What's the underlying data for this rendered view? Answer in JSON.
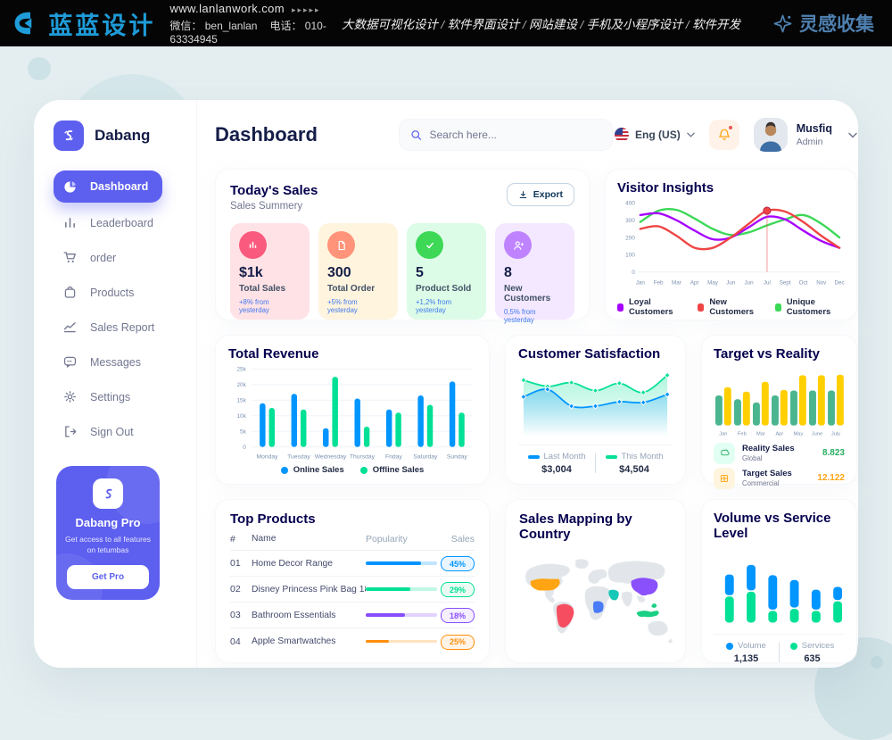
{
  "top_bar": {
    "brand": "蓝蓝设计",
    "website": "www.lanlanwork.com",
    "arrows": "▸▸▸▸▸",
    "wechat": "微信： ben_lanlan",
    "phone": "电话： 010-63334945",
    "services": "大数据可视化设计 / 软件界面设计 / 网站建设 / 手机及小程序设计 / 软件开发",
    "collection": "灵感收集"
  },
  "sidebar": {
    "app_name": "Dabang",
    "items": [
      {
        "label": "Dashboard",
        "active": true
      },
      {
        "label": "Leaderboard",
        "active": false
      },
      {
        "label": "order",
        "active": false
      },
      {
        "label": "Products",
        "active": false
      },
      {
        "label": "Sales Report",
        "active": false
      },
      {
        "label": "Messages",
        "active": false
      },
      {
        "label": "Settings",
        "active": false
      },
      {
        "label": "Sign Out",
        "active": false
      }
    ],
    "pro_card": {
      "title": "Dabang Pro",
      "description": "Get access to all features on tetumbas",
      "button_label": "Get Pro"
    }
  },
  "header": {
    "page_title": "Dashboard",
    "search_placeholder": "Search here...",
    "language": "Eng (US)",
    "user_name": "Musfiq",
    "user_role": "Admin"
  },
  "today_sales": {
    "title": "Today's Sales",
    "subtitle": "Sales Summery",
    "export_label": "Export",
    "stats": [
      {
        "value": "$1k",
        "label": "Total Sales",
        "delta": "+8% from yesterday",
        "bg": "#FFE2E6",
        "icon_bg": "#FA5A7D"
      },
      {
        "value": "300",
        "label": "Total Order",
        "delta": "+5% from yesterday",
        "bg": "#FFF4DE",
        "icon_bg": "#FF947A"
      },
      {
        "value": "5",
        "label": "Product Sold",
        "delta": "+1,2% from yesterday",
        "bg": "#DCFCE7",
        "icon_bg": "#3CD856"
      },
      {
        "value": "8",
        "label": "New Customers",
        "delta": "0,5% from yesterday",
        "bg": "#F3E8FF",
        "icon_bg": "#BF83FF"
      }
    ]
  },
  "chart_data": [
    {
      "id": "visitor_insights",
      "type": "line",
      "title": "Visitor Insights",
      "x": [
        "Jan",
        "Feb",
        "Mar",
        "Apr",
        "May",
        "Jun",
        "Jun",
        "Jul",
        "Sept",
        "Oct",
        "Nov",
        "Dec"
      ],
      "ylim": [
        0,
        400
      ],
      "yticks": [
        0,
        100,
        200,
        300,
        400
      ],
      "series": [
        {
          "name": "Loyal Customers",
          "color": "#A700FF",
          "values": [
            330,
            340,
            300,
            240,
            190,
            200,
            260,
            320,
            305,
            240,
            180,
            140
          ]
        },
        {
          "name": "New Customers",
          "color": "#EF4444",
          "values": [
            250,
            265,
            210,
            140,
            140,
            200,
            280,
            355,
            350,
            290,
            210,
            140
          ]
        },
        {
          "name": "Unique Customers",
          "color": "#3CD856",
          "values": [
            290,
            355,
            360,
            310,
            250,
            215,
            230,
            270,
            305,
            330,
            280,
            200
          ]
        }
      ],
      "highlight": {
        "series": "New Customers",
        "x_index": 7,
        "value": 355
      }
    },
    {
      "id": "total_revenue",
      "type": "bar",
      "title": "Total Revenue",
      "categories": [
        "Monday",
        "Tuesday",
        "Wednesday",
        "Thursday",
        "Friday",
        "Saturday",
        "Sunday"
      ],
      "ylim": [
        0,
        25
      ],
      "ytick_labels": [
        "0",
        "5k",
        "10k",
        "15k",
        "20k",
        "25k"
      ],
      "series": [
        {
          "name": "Online Sales",
          "color": "#0095FF",
          "values": [
            14,
            17,
            6,
            15.5,
            12,
            16.5,
            21
          ]
        },
        {
          "name": "Offline Sales",
          "color": "#00E096",
          "values": [
            12.5,
            12,
            22.5,
            6.5,
            11,
            13.5,
            11
          ]
        }
      ]
    },
    {
      "id": "customer_satisfaction",
      "type": "area",
      "title": "Customer Satisfaction",
      "ylim": [
        0,
        100
      ],
      "series": [
        {
          "name": "Last Month",
          "value_label": "$3,004",
          "color": "#0095FF",
          "values": [
            55,
            67,
            40,
            40,
            47,
            46,
            59
          ]
        },
        {
          "name": "This Month",
          "value_label": "$4,504",
          "color": "#07E098",
          "values": [
            82,
            72,
            78,
            65,
            77,
            62,
            90
          ]
        }
      ]
    },
    {
      "id": "target_vs_reality",
      "type": "bar",
      "title": "Target vs Reality",
      "categories": [
        "Jan",
        "Feb",
        "Mar",
        "Apr",
        "May",
        "June",
        "July"
      ],
      "ylim": [
        0,
        100
      ],
      "series": [
        {
          "name": "Reality Sales",
          "color": "#4AB58E",
          "values": [
            55,
            48,
            42,
            55,
            64,
            64,
            64
          ]
        },
        {
          "name": "Target Sales",
          "color": "#FFCF00",
          "values": [
            70,
            62,
            80,
            65,
            92,
            92,
            93
          ]
        }
      ],
      "legend": [
        {
          "name": "Reality Sales",
          "subtitle": "Global",
          "value": "8.823",
          "value_color": "#27AE60",
          "icon_bg": "#E2FFF3"
        },
        {
          "name": "Target Sales",
          "subtitle": "Commercial",
          "value": "12.122",
          "value_color": "#FFA412",
          "icon_bg": "#FFF4DE"
        }
      ]
    },
    {
      "id": "volume_vs_service",
      "type": "stacked-bar",
      "title": "Volume vs Service Level",
      "series": [
        {
          "name": "Volume",
          "color": "#0095FF",
          "total_label": "1,135",
          "values": [
            30,
            37,
            50,
            40,
            29,
            19
          ]
        },
        {
          "name": "Services",
          "color": "#00E096",
          "total_label": "635",
          "values": [
            38,
            45,
            17,
            20,
            17,
            31
          ]
        }
      ]
    }
  ],
  "top_products": {
    "title": "Top Products",
    "headers": [
      "#",
      "Name",
      "Popularity",
      "Sales"
    ],
    "rows": [
      {
        "num": "01",
        "name": "Home Decor Range",
        "popularity": 78,
        "sales": "45%",
        "color": "#0095FF",
        "tint": "#EAF6FF"
      },
      {
        "num": "02",
        "name": "Disney Princess Pink Bag 18'",
        "popularity": 62,
        "sales": "29%",
        "color": "#00E096",
        "tint": "#EBFBF3"
      },
      {
        "num": "03",
        "name": "Bathroom Essentials",
        "popularity": 55,
        "sales": "18%",
        "color": "#884DFF",
        "tint": "#F5EFFF"
      },
      {
        "num": "04",
        "name": "Apple Smartwatches",
        "popularity": 33,
        "sales": "25%",
        "color": "#FF8F0D",
        "tint": "#FFF4E7"
      }
    ]
  },
  "sales_map": {
    "title": "Sales Mapping by Country",
    "countries": [
      {
        "name": "United States",
        "color": "#FFA412"
      },
      {
        "name": "Brazil",
        "color": "#F64E60"
      },
      {
        "name": "DR Congo",
        "color": "#4A7BF6"
      },
      {
        "name": "Saudi Arabia",
        "color": "#16C8B5"
      },
      {
        "name": "China",
        "color": "#8950FC"
      },
      {
        "name": "Indonesia",
        "color": "#1BD084"
      }
    ]
  }
}
